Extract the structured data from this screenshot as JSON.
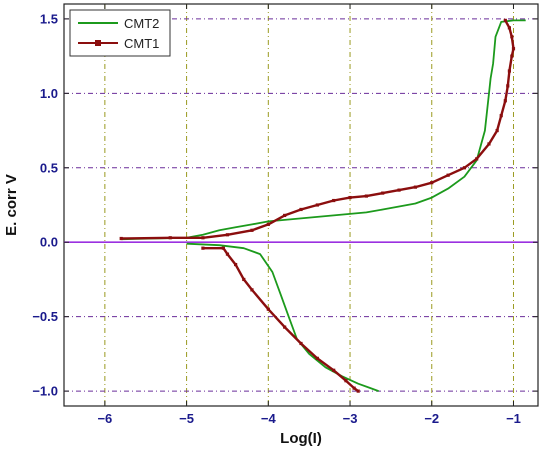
{
  "chart_data": {
    "type": "line",
    "xlabel": "Log(I)",
    "ylabel": "E. corr V",
    "xlim": [
      -6.5,
      -0.7
    ],
    "ylim": [
      -1.1,
      1.6
    ],
    "x_ticks": [
      -6,
      -5,
      -4,
      -3,
      -2,
      -1
    ],
    "x_tick_labels": [
      "−6",
      "−5",
      "−4",
      "−3",
      "−2",
      "−1"
    ],
    "y_ticks": [
      -1.0,
      -0.5,
      0.0,
      0.5,
      1.0,
      1.5
    ],
    "y_tick_labels": [
      "−1.0",
      "−0.5",
      "0.0",
      "0.5",
      "1.0",
      "1.5"
    ],
    "grid": "dash-dot lines at ticks",
    "legend_position": "top-left",
    "grid_colors": {
      "vertical": "#9a9a20",
      "horizontal": "#6a2d9a"
    },
    "reference_line": {
      "y": 0.0,
      "color": "#9b30e0"
    },
    "series": [
      {
        "name": "CMT2",
        "color": "#1c9a1c",
        "marker": "none",
        "points": [
          [
            -5.8,
            0.02
          ],
          [
            -5.4,
            0.025
          ],
          [
            -5.0,
            0.03
          ],
          [
            -4.8,
            0.05
          ],
          [
            -4.6,
            0.08
          ],
          [
            -4.4,
            0.1
          ],
          [
            -4.2,
            0.12
          ],
          [
            -4.0,
            0.14
          ],
          [
            -3.8,
            0.15
          ],
          [
            -3.6,
            0.16
          ],
          [
            -3.4,
            0.17
          ],
          [
            -3.2,
            0.18
          ],
          [
            -3.0,
            0.19
          ],
          [
            -2.8,
            0.2
          ],
          [
            -2.6,
            0.22
          ],
          [
            -2.4,
            0.24
          ],
          [
            -2.2,
            0.26
          ],
          [
            -2.0,
            0.3
          ],
          [
            -1.8,
            0.36
          ],
          [
            -1.6,
            0.44
          ],
          [
            -1.45,
            0.55
          ],
          [
            -1.35,
            0.75
          ],
          [
            -1.3,
            1.0
          ],
          [
            -1.28,
            1.1
          ],
          [
            -1.25,
            1.2
          ],
          [
            -1.22,
            1.38
          ],
          [
            -1.15,
            1.48
          ],
          [
            -1.0,
            1.49
          ],
          [
            -0.85,
            1.49
          ]
        ],
        "cathodic_points": [
          [
            -5.0,
            -0.01
          ],
          [
            -4.6,
            -0.02
          ],
          [
            -4.3,
            -0.04
          ],
          [
            -4.1,
            -0.08
          ],
          [
            -3.95,
            -0.2
          ],
          [
            -3.85,
            -0.35
          ],
          [
            -3.75,
            -0.5
          ],
          [
            -3.65,
            -0.65
          ],
          [
            -3.5,
            -0.75
          ],
          [
            -3.3,
            -0.84
          ],
          [
            -3.1,
            -0.9
          ],
          [
            -2.9,
            -0.95
          ],
          [
            -2.75,
            -0.98
          ],
          [
            -2.65,
            -1.0
          ]
        ]
      },
      {
        "name": "CMT1",
        "color": "#8b0e0e",
        "marker": "square",
        "points": [
          [
            -5.8,
            0.025
          ],
          [
            -5.2,
            0.03
          ],
          [
            -4.8,
            0.03
          ],
          [
            -4.5,
            0.05
          ],
          [
            -4.2,
            0.08
          ],
          [
            -4.0,
            0.12
          ],
          [
            -3.8,
            0.18
          ],
          [
            -3.6,
            0.22
          ],
          [
            -3.4,
            0.25
          ],
          [
            -3.2,
            0.28
          ],
          [
            -3.0,
            0.3
          ],
          [
            -2.8,
            0.31
          ],
          [
            -2.6,
            0.33
          ],
          [
            -2.4,
            0.35
          ],
          [
            -2.2,
            0.37
          ],
          [
            -2.0,
            0.4
          ],
          [
            -1.8,
            0.45
          ],
          [
            -1.6,
            0.5
          ],
          [
            -1.45,
            0.56
          ],
          [
            -1.3,
            0.66
          ],
          [
            -1.2,
            0.75
          ],
          [
            -1.15,
            0.85
          ],
          [
            -1.1,
            0.95
          ],
          [
            -1.07,
            1.05
          ],
          [
            -1.05,
            1.15
          ],
          [
            -1.02,
            1.25
          ],
          [
            -1.0,
            1.3
          ],
          [
            -1.02,
            1.38
          ],
          [
            -1.05,
            1.44
          ],
          [
            -1.1,
            1.49
          ]
        ],
        "cathodic_points": [
          [
            -4.8,
            -0.04
          ],
          [
            -4.55,
            -0.04
          ],
          [
            -4.5,
            -0.08
          ],
          [
            -4.4,
            -0.15
          ],
          [
            -4.3,
            -0.25
          ],
          [
            -4.2,
            -0.32
          ],
          [
            -4.0,
            -0.45
          ],
          [
            -3.8,
            -0.57
          ],
          [
            -3.6,
            -0.68
          ],
          [
            -3.4,
            -0.78
          ],
          [
            -3.2,
            -0.86
          ],
          [
            -3.05,
            -0.93
          ],
          [
            -2.95,
            -0.98
          ],
          [
            -2.9,
            -1.0
          ]
        ]
      }
    ]
  }
}
